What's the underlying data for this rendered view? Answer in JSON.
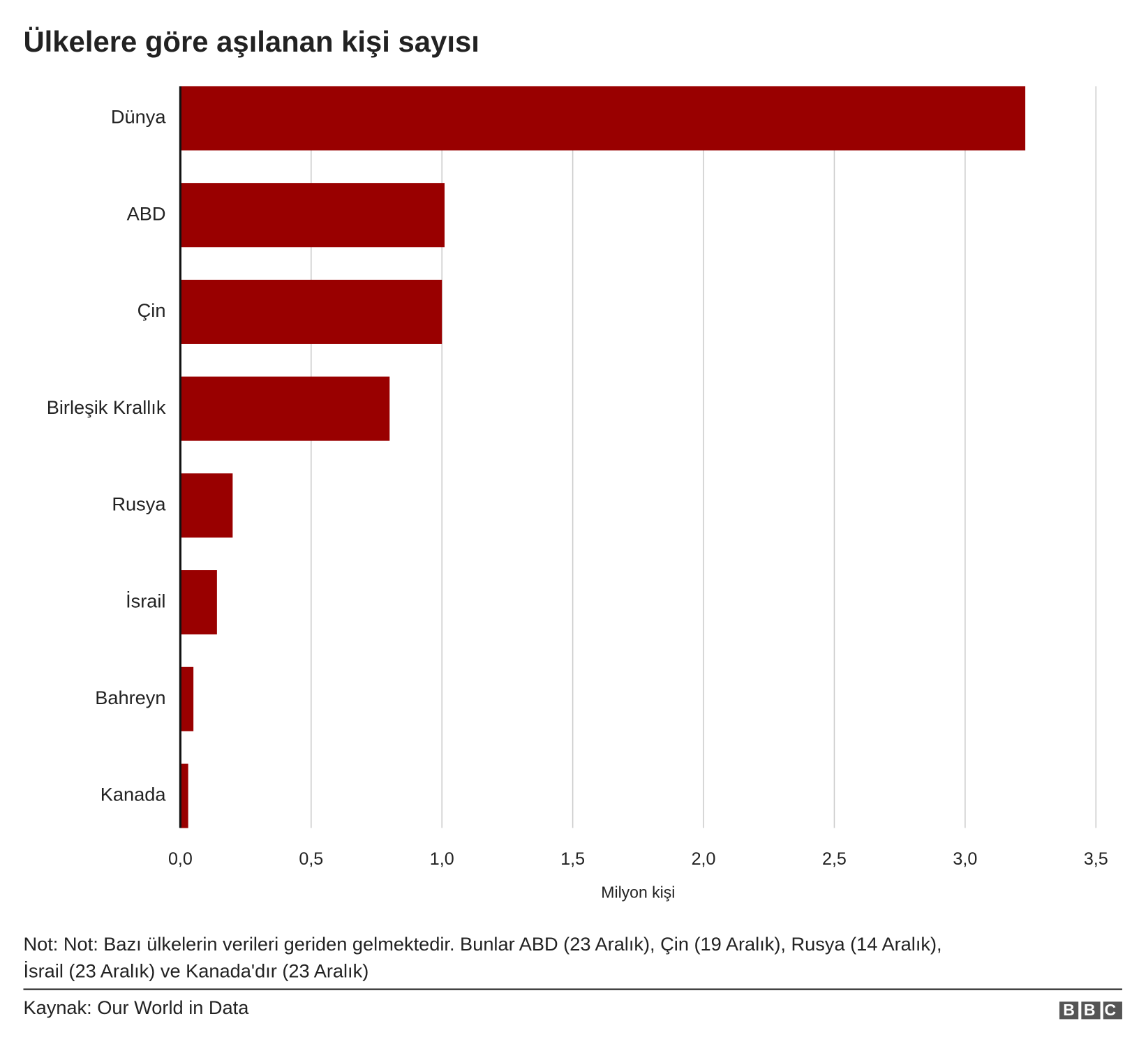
{
  "chart_data": {
    "type": "bar",
    "orientation": "horizontal",
    "title": "Ülkelere göre aşılanan kişi sayısı",
    "categories": [
      "Dünya",
      "ABD",
      "Çin",
      "Birleşik Krallık",
      "Rusya",
      "İsrail",
      "Bahreyn",
      "Kanada"
    ],
    "values": [
      3.23,
      1.01,
      1.0,
      0.8,
      0.2,
      0.14,
      0.05,
      0.03
    ],
    "color": "#990000",
    "xlim": [
      0,
      3.5
    ],
    "xticks": [
      {
        "value": 0,
        "label": "0,0"
      },
      {
        "value": 0.5,
        "label": "0,5"
      },
      {
        "value": 1,
        "label": "1,0"
      },
      {
        "value": 1.5,
        "label": "1,5"
      },
      {
        "value": 2,
        "label": "2,0"
      },
      {
        "value": 2.5,
        "label": "2,5"
      },
      {
        "value": 3,
        "label": "3,0"
      },
      {
        "value": 3.5,
        "label": "3,5"
      }
    ],
    "x_label": "Milyon kişi",
    "grid": true,
    "note": [
      "Not: Not: Bazı ülkelerin verileri geriden gelmektedir. Bunlar ABD (23 Aralık), Çin (19 Aralık), Rusya (14 Aralık),",
      "İsrail (23 Aralık) ve Kanada'dır (23 Aralık)"
    ],
    "source": "Kaynak: Our World in Data",
    "logo": "BBC"
  }
}
